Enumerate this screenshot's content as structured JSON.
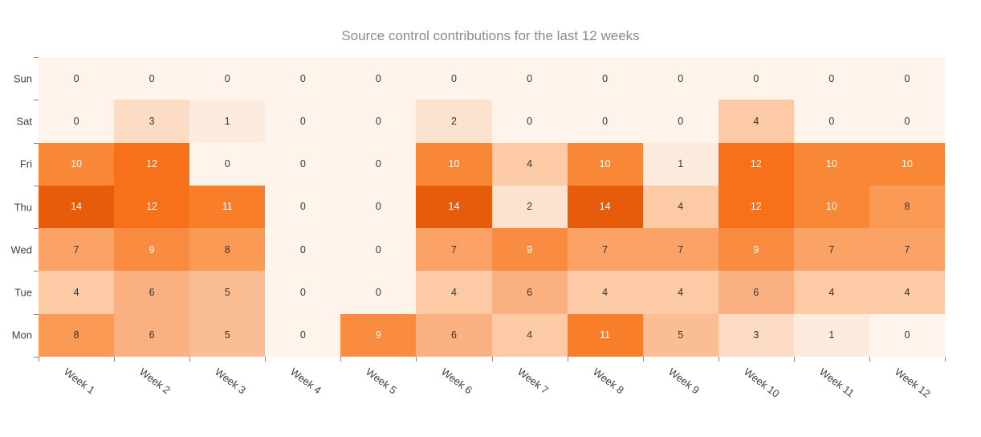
{
  "chart_data": {
    "type": "heatmap",
    "title": "Source control contributions for the last 12 weeks",
    "x_categories": [
      "Week 1",
      "Week 2",
      "Week 3",
      "Week 4",
      "Week 5",
      "Week 6",
      "Week 7",
      "Week 8",
      "Week 9",
      "Week 10",
      "Week 11",
      "Week 12"
    ],
    "y_categories": [
      "Sun",
      "Sat",
      "Fri",
      "Thu",
      "Wed",
      "Tue",
      "Mon"
    ],
    "series": [
      {
        "name": "Sun",
        "values": [
          0,
          0,
          0,
          0,
          0,
          0,
          0,
          0,
          0,
          0,
          0,
          0
        ]
      },
      {
        "name": "Sat",
        "values": [
          0,
          3,
          1,
          0,
          0,
          2,
          0,
          0,
          0,
          4,
          0,
          0
        ]
      },
      {
        "name": "Fri",
        "values": [
          10,
          12,
          0,
          0,
          0,
          10,
          4,
          10,
          1,
          12,
          10,
          10
        ]
      },
      {
        "name": "Thu",
        "values": [
          14,
          12,
          11,
          0,
          0,
          14,
          2,
          14,
          4,
          12,
          10,
          8
        ]
      },
      {
        "name": "Wed",
        "values": [
          7,
          9,
          8,
          0,
          0,
          7,
          9,
          7,
          7,
          9,
          7,
          7
        ]
      },
      {
        "name": "Tue",
        "values": [
          4,
          6,
          5,
          0,
          0,
          4,
          6,
          4,
          4,
          6,
          4,
          4
        ]
      },
      {
        "name": "Mon",
        "values": [
          8,
          6,
          5,
          0,
          9,
          6,
          4,
          11,
          5,
          3,
          1,
          0
        ]
      }
    ],
    "value_range": [
      0,
      14
    ],
    "colorscale": {
      "0": "#fef4ec",
      "1": "#fdecdd",
      "2": "#fce3d0",
      "3": "#fcdcc4",
      "4": "#fccaa4",
      "5": "#fbbd93",
      "6": "#fbb081",
      "7": "#fba266",
      "8": "#fa9a55",
      "9": "#fa8c42",
      "10": "#f98836",
      "11": "#f97e29",
      "12": "#f7701a",
      "14": "#e65c0b"
    },
    "white_text_min": 9,
    "title_color": "#8b8b8b",
    "label_color": "#3f3f3f",
    "xlabel": "",
    "ylabel": "",
    "legend": "none",
    "grid_lines": "off"
  }
}
